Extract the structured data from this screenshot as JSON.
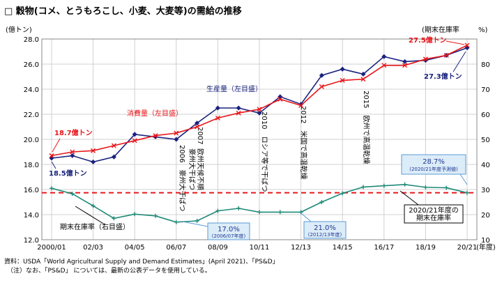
{
  "chart_data": {
    "type": "line",
    "title": "□ 穀物(コメ、とうもろこし、小麦、大麦等)の需給の推移",
    "left_axis_unit": "(億トン)",
    "right_axis_unit_label": "(期末在庫率",
    "right_axis_unit_pct": "%)",
    "x_unit": "(年度)",
    "x_tick_labels": [
      "2000/01",
      "02/03",
      "04/05",
      "06/07",
      "08/09",
      "10/11",
      "12/13",
      "14/15",
      "16/17",
      "18/19",
      "20/21"
    ],
    "x_tick_index": [
      0,
      2,
      4,
      6,
      8,
      10,
      12,
      14,
      16,
      18,
      20
    ],
    "y_left_range": [
      12.0,
      28.0
    ],
    "y_left_ticks": [
      "12.0",
      "14.0",
      "16.0",
      "18.0",
      "20.0",
      "22.0",
      "24.0",
      "26.0",
      "28.0"
    ],
    "y_right_range": [
      10,
      90
    ],
    "y_right_ticks": [
      "10",
      "20",
      "30",
      "40",
      "50",
      "60",
      "70",
      "80"
    ],
    "grid": true,
    "categories": [
      "2000/01",
      "01/02",
      "02/03",
      "03/04",
      "04/05",
      "05/06",
      "06/07",
      "07/08",
      "08/09",
      "09/10",
      "10/11",
      "11/12",
      "12/13",
      "13/14",
      "14/15",
      "15/16",
      "16/17",
      "17/18",
      "18/19",
      "19/20",
      "20/21"
    ],
    "series": [
      {
        "name": "生産量（左目盛）",
        "axis": "left",
        "color": "#1a237e",
        "values": [
          18.5,
          18.7,
          18.2,
          18.6,
          20.4,
          20.2,
          20.0,
          21.3,
          22.5,
          22.5,
          22.1,
          23.4,
          22.8,
          25.1,
          25.6,
          25.2,
          26.6,
          26.2,
          26.3,
          26.7,
          27.3
        ]
      },
      {
        "name": "消費量（左目盛）",
        "axis": "left",
        "color": "#e8161b",
        "values": [
          18.7,
          19.0,
          19.1,
          19.5,
          19.9,
          20.3,
          20.5,
          21.0,
          21.7,
          22.1,
          22.4,
          23.2,
          22.7,
          24.2,
          24.7,
          24.8,
          25.9,
          25.9,
          26.4,
          26.7,
          27.5
        ]
      },
      {
        "name": "期末在庫率（右目盛）",
        "axis": "right",
        "color": "#1f8a78",
        "values": [
          30.5,
          28.3,
          23.5,
          18.5,
          20.2,
          19.5,
          17.0,
          17.5,
          21.5,
          22.5,
          21.0,
          21.0,
          21.0,
          25.0,
          28.5,
          31.0,
          31.5,
          32.0,
          30.9,
          30.7,
          28.7
        ]
      }
    ],
    "reference_line": {
      "axis": "right",
      "value": 28.7,
      "color": "#e8161b",
      "style": "dashed"
    },
    "annotations": {
      "prod_start": "18.5億トン",
      "cons_start": "18.7億トン",
      "cons_end": "27.5億トン",
      "prod_end": "27.3億トン",
      "prod_label": "生産量（左目盛）",
      "cons_label": "消費量（左目盛）",
      "stock_label": "期末在庫率（右目盛）",
      "box_2006": "17.0%",
      "box_2006_sub": "(2006/07年度)",
      "box_2012": "21.0%",
      "box_2012_sub": "(2012/13年度)",
      "box_2020": "28.7%",
      "box_2020_sub": "(2020/21年度予測値)",
      "box_2020_note_1": "2020/21年度の",
      "box_2020_note_2": "期末在庫率",
      "event_2006_1": "2006　豪州大干ばつ",
      "event_2007_1": "2007",
      "event_2007_2": "豪州大干ばつ",
      "event_2007_3": "欧州天候不順",
      "event_2010": "2010　ロシア等で干ばつ",
      "event_2012": "2012　米国で高温乾燥",
      "event_2015": "2015　欧州で高温乾燥"
    },
    "source_1": "資料：USDA「World Agricultural Supply and Demand Estimates」(April 2021)、「PS&D」",
    "source_2": "（注）なお、「PS&D」 については、最新の公表データを使用している。"
  }
}
